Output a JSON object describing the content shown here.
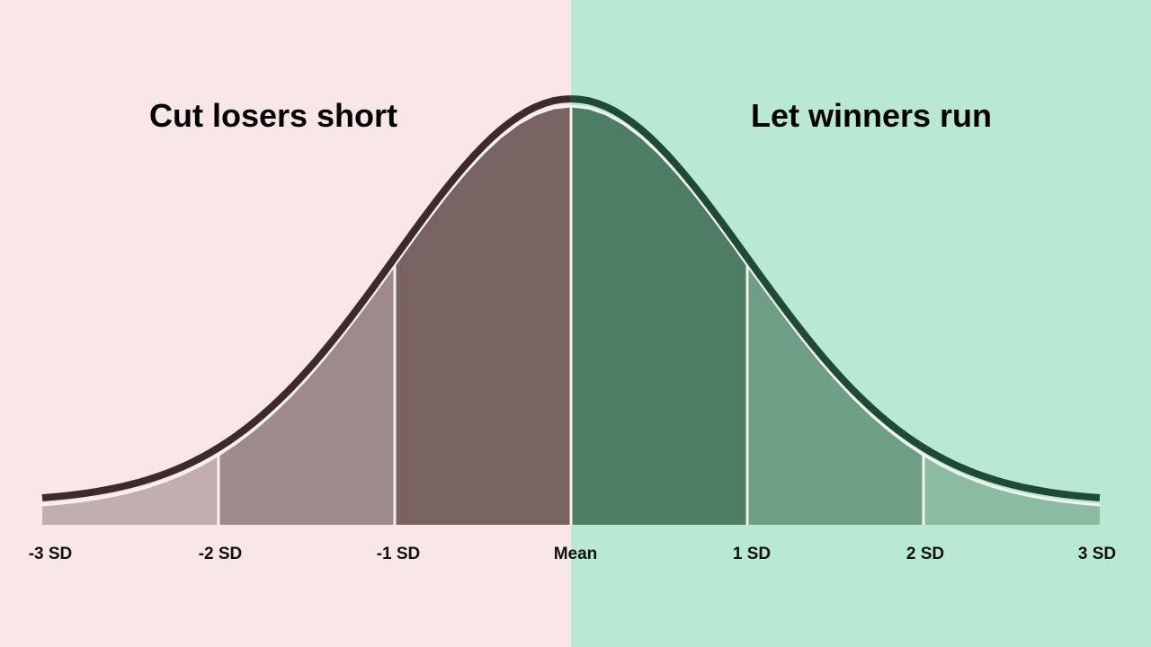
{
  "left_panel": {
    "heading": "Cut losers short",
    "background": "#f9e6e6",
    "fill_color": "#786262",
    "line_color": "#3e2a2a"
  },
  "right_panel": {
    "heading": "Let winners run",
    "background": "#b9e9d2",
    "fill_color": "#4e7d65",
    "line_color": "#1f4a34"
  },
  "axis": {
    "labels": [
      "-3 SD",
      "-2 SD",
      "-1 SD",
      "Mean",
      "1 SD",
      "2 SD",
      "3 SD"
    ],
    "sd_values": [
      -3,
      -2,
      -1,
      0,
      1,
      2,
      3
    ]
  },
  "band_opacities": [
    0.42,
    0.7,
    1
  ]
}
